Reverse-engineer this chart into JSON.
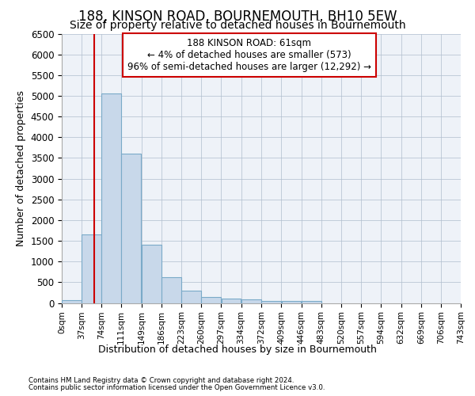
{
  "title": "188, KINSON ROAD, BOURNEMOUTH, BH10 5EW",
  "subtitle": "Size of property relative to detached houses in Bournemouth",
  "xlabel": "Distribution of detached houses by size in Bournemouth",
  "ylabel": "Number of detached properties",
  "bin_edges": [
    0,
    37,
    74,
    111,
    149,
    186,
    223,
    260,
    297,
    334,
    372,
    409,
    446,
    483,
    520,
    557,
    594,
    632,
    669,
    706,
    743
  ],
  "bar_heights": [
    75,
    1650,
    5050,
    3600,
    1400,
    620,
    300,
    150,
    110,
    80,
    55,
    50,
    50,
    0,
    0,
    0,
    0,
    0,
    0,
    0
  ],
  "bar_color": "#c8d8ea",
  "bar_edge_color": "#7aaac8",
  "property_size": 61,
  "property_line_color": "#cc0000",
  "annotation_line1": "188 KINSON ROAD: 61sqm",
  "annotation_line2": "← 4% of detached houses are smaller (573)",
  "annotation_line3": "96% of semi-detached houses are larger (12,292) →",
  "annotation_box_color": "#cc0000",
  "ylim": [
    0,
    6500
  ],
  "yticks": [
    0,
    500,
    1000,
    1500,
    2000,
    2500,
    3000,
    3500,
    4000,
    4500,
    5000,
    5500,
    6000,
    6500
  ],
  "footnote1": "Contains HM Land Registry data © Crown copyright and database right 2024.",
  "footnote2": "Contains public sector information licensed under the Open Government Licence v3.0.",
  "background_color": "#eef2f8",
  "grid_color": "#b0bece",
  "title_fontsize": 12,
  "subtitle_fontsize": 10,
  "tick_labels": [
    "0sqm",
    "37sqm",
    "74sqm",
    "111sqm",
    "149sqm",
    "186sqm",
    "223sqm",
    "260sqm",
    "297sqm",
    "334sqm",
    "372sqm",
    "409sqm",
    "446sqm",
    "483sqm",
    "520sqm",
    "557sqm",
    "594sqm",
    "632sqm",
    "669sqm",
    "706sqm",
    "743sqm"
  ]
}
